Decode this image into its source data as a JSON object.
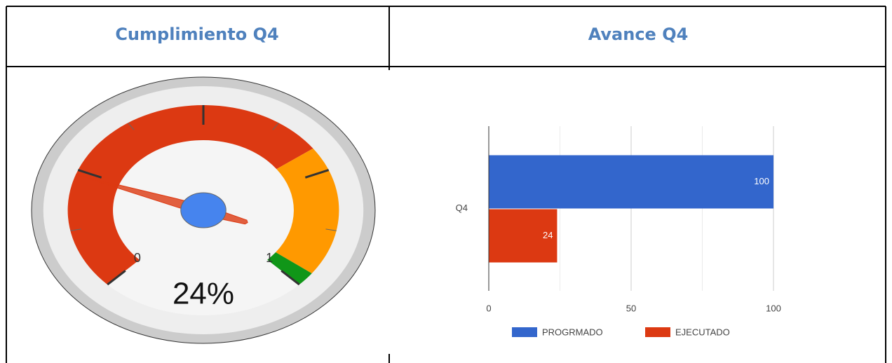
{
  "table": {
    "headers": [
      "Cumplimiento Q4",
      "Avance Q4"
    ]
  },
  "chart_data": [
    {
      "type": "gauge",
      "value": 0.24,
      "value_label": "24%",
      "range": [
        0,
        1
      ],
      "major_ticks": [
        0,
        0.25,
        0.5,
        0.75,
        1
      ],
      "minor_ticks": [
        0.125,
        0.375,
        0.625,
        0.875
      ],
      "bands": [
        {
          "from": 0,
          "to": 0.7,
          "color": "#dc3912"
        },
        {
          "from": 0.7,
          "to": 0.97,
          "color": "#ff9900"
        },
        {
          "from": 0.97,
          "to": 1,
          "color": "#109618"
        }
      ],
      "needle_color": "#dc3912"
    },
    {
      "type": "bar",
      "orientation": "horizontal",
      "categories": [
        "Q4"
      ],
      "series": [
        {
          "name": "PROGRMADO",
          "color": "#3366cc",
          "values": [
            100
          ]
        },
        {
          "name": "EJECUTADO",
          "color": "#dc3912",
          "values": [
            24
          ]
        }
      ],
      "xlim": [
        0,
        100
      ],
      "xticks": [
        0,
        50,
        100
      ],
      "minor_xticks": [
        25,
        75
      ],
      "grid": true,
      "legend": "bottom"
    }
  ]
}
